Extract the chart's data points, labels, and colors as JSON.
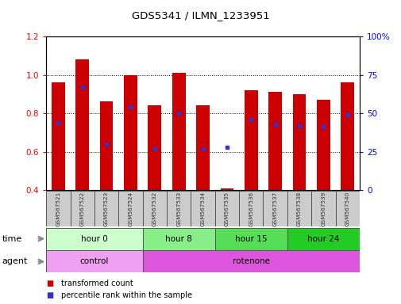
{
  "title": "GDS5341 / ILMN_1233951",
  "samples": [
    "GSM567521",
    "GSM567522",
    "GSM567523",
    "GSM567524",
    "GSM567532",
    "GSM567533",
    "GSM567534",
    "GSM567535",
    "GSM567536",
    "GSM567537",
    "GSM567538",
    "GSM567539",
    "GSM567540"
  ],
  "transformed_count": [
    0.96,
    1.08,
    0.86,
    1.0,
    0.84,
    1.01,
    0.84,
    0.41,
    0.92,
    0.91,
    0.9,
    0.87,
    0.96
  ],
  "percentile_rank_pct": [
    44,
    67,
    30,
    54,
    27,
    50,
    27,
    28,
    46,
    43,
    42,
    41,
    49
  ],
  "bar_bottom": 0.4,
  "ylim_left": [
    0.4,
    1.2
  ],
  "ylim_right": [
    0,
    100
  ],
  "yticks_left": [
    0.4,
    0.6,
    0.8,
    1.0,
    1.2
  ],
  "yticks_right": [
    0,
    25,
    50,
    75,
    100
  ],
  "bar_color": "#cc0000",
  "dot_color": "#3333cc",
  "bar_width": 0.55,
  "time_groups": [
    {
      "label": "hour 0",
      "start": 0,
      "end": 4,
      "color": "#ccffcc"
    },
    {
      "label": "hour 8",
      "start": 4,
      "end": 7,
      "color": "#88ee88"
    },
    {
      "label": "hour 15",
      "start": 7,
      "end": 10,
      "color": "#55dd55"
    },
    {
      "label": "hour 24",
      "start": 10,
      "end": 13,
      "color": "#22cc22"
    }
  ],
  "agent_groups": [
    {
      "label": "control",
      "start": 0,
      "end": 4,
      "color": "#f0a0f0"
    },
    {
      "label": "rotenone",
      "start": 4,
      "end": 13,
      "color": "#dd55dd"
    }
  ],
  "legend_bar_color": "#cc0000",
  "legend_dot_color": "#3333cc",
  "legend_label1": "transformed count",
  "legend_label2": "percentile rank within the sample",
  "time_label": "time",
  "agent_label": "agent",
  "bg_color": "#ffffff",
  "sample_box_color": "#cccccc",
  "sample_text_color": "#333333"
}
